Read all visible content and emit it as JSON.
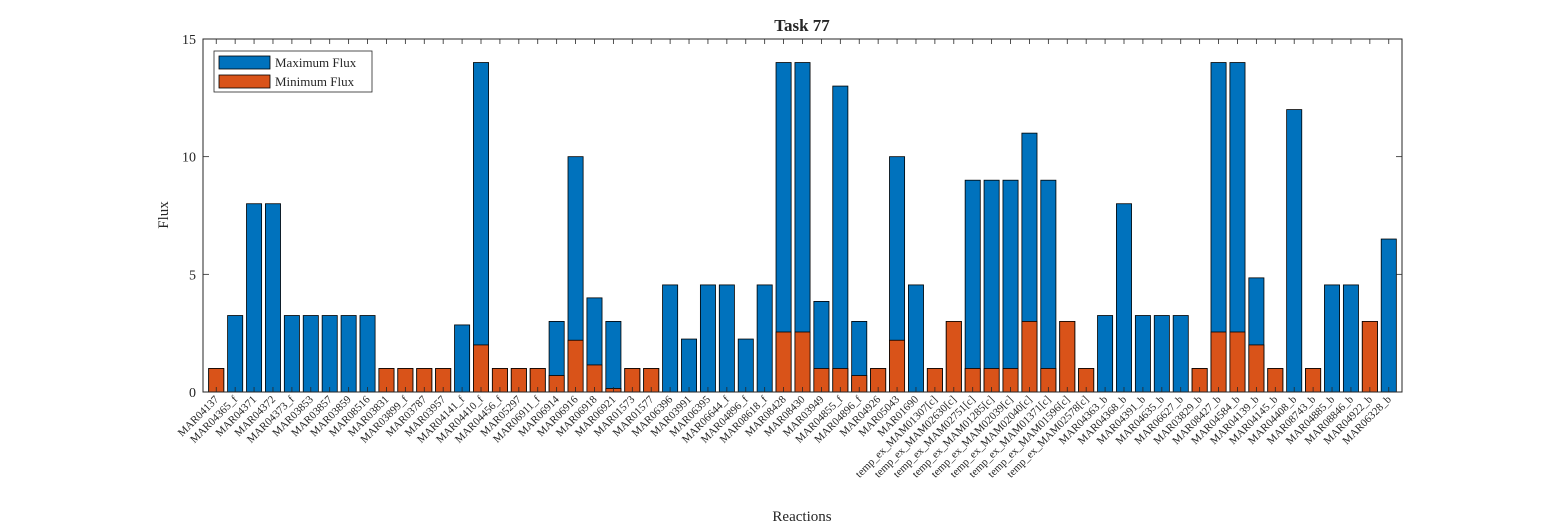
{
  "chart_data": {
    "type": "bar",
    "title": "Task 77",
    "xlabel": "Reactions",
    "ylabel": "Flux",
    "ylim": [
      0,
      15
    ],
    "yticks": [
      "0",
      "5",
      "10",
      "15"
    ],
    "legend": {
      "position": "top-left"
    },
    "categories": [
      "MAR04137",
      "MAR04365_f",
      "MAR04371",
      "MAR04372",
      "MAR04373_f",
      "MAR03853",
      "MAR03857",
      "MAR03859",
      "MAR08516",
      "MAR03831",
      "MAR03899_f",
      "MAR03787",
      "MAR03957",
      "MAR04141_f",
      "MAR04410_f",
      "MAR04456_f",
      "MAR05297",
      "MAR06911_f",
      "MAR06914",
      "MAR06916",
      "MAR06918",
      "MAR06921",
      "MAR01573",
      "MAR01577",
      "MAR06396",
      "MAR03991",
      "MAR06395",
      "MAR06644_f",
      "MAR04896_f",
      "MAR08618_f",
      "MAR08428",
      "MAR08430",
      "MAR03949",
      "MAR04855_f",
      "MAR04896_f",
      "MAR04926",
      "MAR05043",
      "MAR01690",
      "temp_ex_MAM01307[c]",
      "temp_ex_MAM02630[c]",
      "temp_ex_MAM02751[c]",
      "temp_ex_MAM01285[c]",
      "temp_ex_MAM02039[c]",
      "temp_ex_MAM02040[c]",
      "temp_ex_MAM01371[c]",
      "temp_ex_MAM01596[c]",
      "temp_ex_MAM02578[c]",
      "MAR04363_b",
      "MAR04368_b",
      "MAR04391_b",
      "MAR04635_b",
      "MAR06627_b",
      "MAR03829_b",
      "MAR08427_b",
      "MAR04584_b",
      "MAR04139_b",
      "MAR04145_b",
      "MAR04408_b",
      "MAR08743_b",
      "MAR04885_b",
      "MAR08846_b",
      "MAR04922_b",
      "MAR06328_b"
    ],
    "series": [
      {
        "name": "Maximum Flux",
        "color": "#0072BD",
        "values": [
          1,
          3.25,
          8,
          8,
          3.25,
          3.25,
          3.25,
          3.25,
          3.25,
          1,
          1,
          1,
          1,
          2.85,
          14,
          1,
          1,
          1,
          3,
          10,
          4,
          3,
          1,
          1,
          4.55,
          2.25,
          4.55,
          4.55,
          2.25,
          4.55,
          14,
          14,
          3.85,
          13,
          3,
          1,
          10,
          4.55,
          1,
          3,
          9,
          9,
          9,
          11,
          9,
          3,
          1,
          3.25,
          8,
          3.25,
          3.25,
          3.25,
          1,
          14,
          14,
          4.85,
          1,
          12,
          1,
          4.55,
          4.55,
          3,
          6.5
        ]
      },
      {
        "name": "Minimum Flux",
        "color": "#D95319",
        "values": [
          1,
          0,
          0,
          0,
          0,
          0,
          0,
          0,
          0,
          1,
          1,
          1,
          1,
          0,
          2,
          1,
          1,
          1,
          0.7,
          2.2,
          1.15,
          0.15,
          1,
          1,
          0,
          0,
          0,
          0,
          0,
          0,
          2.55,
          2.55,
          1,
          1,
          0.7,
          1,
          2.2,
          0,
          1,
          3,
          1,
          1,
          1,
          3,
          1,
          3,
          1,
          0,
          0,
          0,
          0,
          0,
          1,
          2.55,
          2.55,
          2,
          1,
          0,
          1,
          0,
          0,
          3,
          0
        ]
      }
    ]
  }
}
